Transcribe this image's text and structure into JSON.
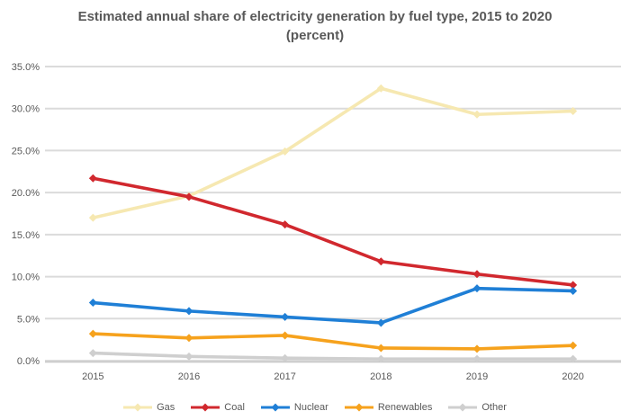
{
  "title": {
    "line1": "Estimated annual share of electricity generation by fuel type, 2015 to 2020",
    "line2": "(percent)"
  },
  "chart_data": {
    "type": "line",
    "categories": [
      "2015",
      "2016",
      "2017",
      "2018",
      "2019",
      "2020"
    ],
    "series": [
      {
        "name": "Gas",
        "color": "#F6E8B1",
        "values": [
          17.0,
          19.6,
          24.9,
          32.4,
          29.3,
          29.7
        ]
      },
      {
        "name": "Coal",
        "color": "#D1282E",
        "values": [
          21.7,
          19.5,
          16.2,
          11.8,
          10.3,
          9.0
        ]
      },
      {
        "name": "Nuclear",
        "color": "#1F7FD6",
        "values": [
          6.9,
          5.9,
          5.2,
          4.5,
          8.6,
          8.3
        ]
      },
      {
        "name": "Renewables",
        "color": "#F6A21D",
        "values": [
          3.2,
          2.7,
          3.0,
          1.5,
          1.4,
          1.8
        ]
      },
      {
        "name": "Other",
        "color": "#CFCFCF",
        "values": [
          0.9,
          0.5,
          0.3,
          0.2,
          0.2,
          0.2
        ]
      }
    ],
    "ylim": [
      0,
      35
    ],
    "ytick_labels": [
      "0.0%",
      "5.0%",
      "10.0%",
      "15.0%",
      "20.0%",
      "25.0%",
      "30.0%",
      "35.0%"
    ],
    "grid": true,
    "legend_position": "bottom",
    "xlabel": "",
    "ylabel": "",
    "marker": "diamond"
  },
  "colors": {
    "text": "#595959",
    "gridline": "#DBDBDB",
    "axis_line": "#C6C6C6",
    "background": "#FFFFFF"
  }
}
